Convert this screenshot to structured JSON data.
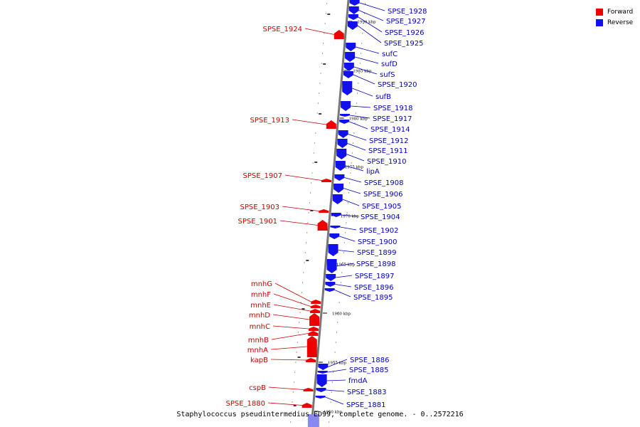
{
  "caption": "Staphylococcus pseudintermedius ED99, complete genome. - 0..2572216",
  "legend": [
    {
      "label": "Forward",
      "color": "#ee0000"
    },
    {
      "label": "Reverse",
      "color": "#1111ee"
    }
  ],
  "colors": {
    "forward": "#ee0000",
    "reverse": "#1111ee",
    "forward_label": "#cc0000",
    "reverse_label": "#0000bb",
    "axis": "#777777"
  },
  "ticks": [
    {
      "label": "1990 kbp"
    },
    {
      "label": "1985 kbp"
    },
    {
      "label": "1980 kbp"
    },
    {
      "label": "1975 kbp"
    },
    {
      "label": "1970 kbp"
    },
    {
      "label": "1965 kbp"
    },
    {
      "label": "1960 kbp"
    },
    {
      "label": "1955 kbp"
    },
    {
      "label": "1950 kbp"
    }
  ],
  "forward_genes": [
    "SPSE_1924",
    "SPSE_1913",
    "SPSE_1907",
    "SPSE_1903",
    "SPSE_1901",
    "mnhG",
    "mnhF",
    "mnhE",
    "mnhD",
    "mnhC",
    "mnhB",
    "mnhA",
    "kapB",
    "cspB",
    "SPSE_1880"
  ],
  "reverse_genes": [
    "SPSE_1928",
    "SPSE_1927",
    "SPSE_1926",
    "SPSE_1925",
    "sufC",
    "sufD",
    "sufS",
    "SPSE_1920",
    "sufB",
    "SPSE_1918",
    "SPSE_1917",
    "SPSE_1914",
    "SPSE_1912",
    "SPSE_1911",
    "SPSE_1910",
    "lipA",
    "SPSE_1908",
    "SPSE_1906",
    "SPSE_1905",
    "SPSE_1904",
    "SPSE_1902",
    "SPSE_1900",
    "SPSE_1899",
    "SPSE_1898",
    "SPSE_1897",
    "SPSE_1896",
    "SPSE_1895",
    "SPSE_1886",
    "SPSE_1885",
    "fmdA",
    "SPSE_1883",
    "SPSE_1881"
  ]
}
